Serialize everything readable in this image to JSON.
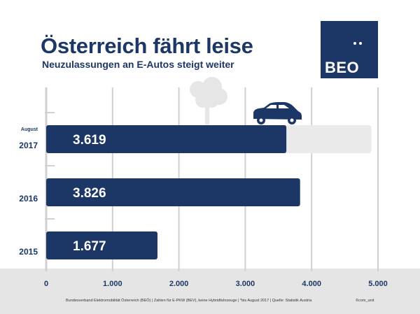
{
  "header": {
    "title": "Österreich fährt leise",
    "subtitle": "Neuzulassungen an E-Autos steigt weiter"
  },
  "logo": {
    "text": "BEO",
    "color": "#1c3766"
  },
  "footer": {
    "note": "Bundesverband Elektromobilität Österreich (BEÖ) | Zahlen für E-PKW (BEV), keine Hybridfahrzeuge | *bis August 2017 | Quelle: Statistik Austria",
    "credit": "©com_unit"
  },
  "icons": [
    "tree-icon",
    "car-icon"
  ],
  "colors": {
    "bar": "#1c3766",
    "projection": "#eaeaea",
    "grid": "#d0d0d0",
    "footer": "#e5e5e5"
  },
  "chart_data": {
    "type": "bar",
    "orientation": "horizontal",
    "categories": [
      "2017",
      "2016",
      "2015"
    ],
    "category_sublabels": [
      "August",
      "",
      ""
    ],
    "values": [
      3619,
      3826,
      1677
    ],
    "value_labels": [
      "3.619",
      "3.826",
      "1.677"
    ],
    "projection": {
      "category": "2017",
      "value": 4900
    },
    "xlim": [
      0,
      5000
    ],
    "xticks": [
      0,
      1000,
      2000,
      3000,
      4000,
      5000
    ],
    "xtick_labels": [
      "0",
      "1.000",
      "2.000",
      "3.000",
      "4.000",
      "5.000"
    ],
    "grid": true
  }
}
